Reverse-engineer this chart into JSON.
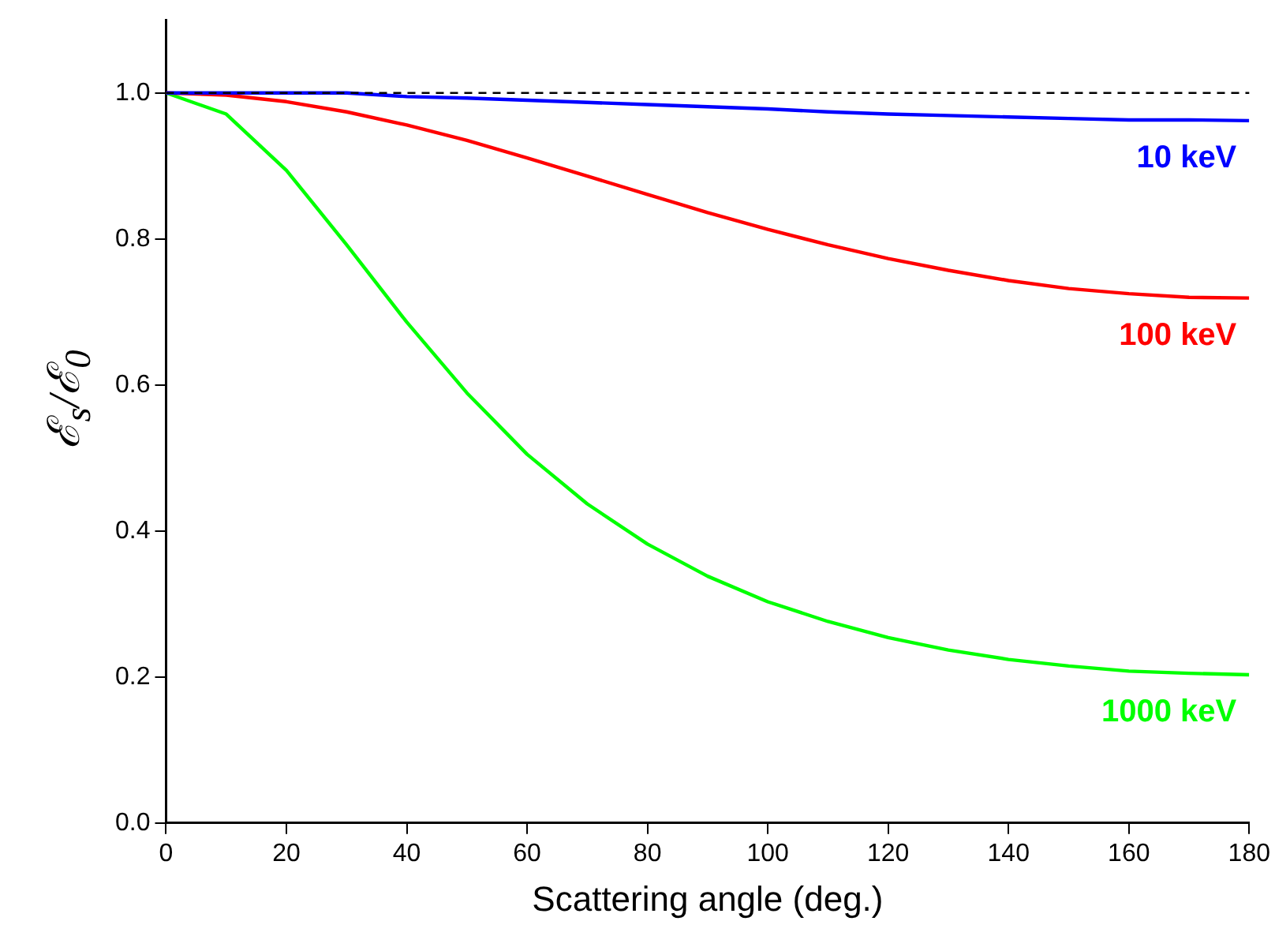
{
  "chart_data": {
    "type": "line",
    "xlabel": "Scattering angle (deg.)",
    "ylabel": "ℰ$_{s}$/ℰ$_{0}$",
    "x": [
      0,
      10,
      20,
      30,
      40,
      50,
      60,
      70,
      80,
      90,
      100,
      110,
      120,
      130,
      140,
      150,
      160,
      170,
      180
    ],
    "series": [
      {
        "name": "10 keV",
        "color": "#0000ff",
        "values": [
          1.0,
          1.0,
          1.0,
          1.0,
          0.995,
          0.993,
          0.99,
          0.987,
          0.984,
          0.981,
          0.978,
          0.974,
          0.971,
          0.969,
          0.967,
          0.965,
          0.963,
          0.963,
          0.962
        ]
      },
      {
        "name": "100 keV",
        "color": "#ff0000",
        "values": [
          1.0,
          0.997,
          0.988,
          0.974,
          0.956,
          0.935,
          0.911,
          0.886,
          0.861,
          0.836,
          0.813,
          0.792,
          0.773,
          0.757,
          0.743,
          0.732,
          0.725,
          0.72,
          0.719
        ]
      },
      {
        "name": "1000 keV",
        "color": "#00ff00",
        "values": [
          1.0,
          0.971,
          0.894,
          0.792,
          0.686,
          0.589,
          0.505,
          0.437,
          0.382,
          0.338,
          0.303,
          0.276,
          0.254,
          0.237,
          0.224,
          0.215,
          0.208,
          0.205,
          0.203
        ]
      }
    ],
    "xlim": [
      0,
      180
    ],
    "xticks": [
      0,
      20,
      40,
      60,
      80,
      100,
      120,
      140,
      160,
      180
    ],
    "ylim": [
      0,
      1.1
    ],
    "yticks": [
      {
        "value": 0,
        "label": "0.0"
      },
      {
        "value": 0.2,
        "label": "0.2"
      },
      {
        "value": 0.4,
        "label": "0.4"
      },
      {
        "value": 0.6,
        "label": "0.6"
      },
      {
        "value": 0.8,
        "label": "0.8"
      },
      {
        "value": 1.0,
        "label": "1.0"
      }
    ],
    "ref_lines": [
      {
        "axis": "y",
        "value": 1.0,
        "color": "#000000",
        "line_style": "dashed"
      }
    ],
    "grid": false,
    "legend": false,
    "marker": "none",
    "line_style": "solid"
  }
}
